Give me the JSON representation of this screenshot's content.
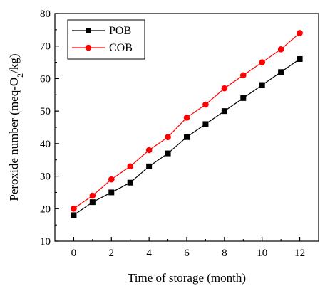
{
  "chart_data": {
    "type": "line",
    "title": "",
    "xlabel": "Time of storage (month)",
    "ylabel_parts": [
      "Peroxide number (meq-O",
      "2",
      "/kg)"
    ],
    "xlim": [
      -1,
      13
    ],
    "ylim": [
      10,
      80
    ],
    "xticks": [
      0,
      2,
      4,
      6,
      8,
      10,
      12
    ],
    "xtick_labels": [
      "0",
      "2",
      "4",
      "6",
      "8",
      "10",
      "12"
    ],
    "yticks": [
      10,
      20,
      30,
      40,
      50,
      60,
      70,
      80
    ],
    "ytick_labels": [
      "10",
      "20",
      "30",
      "40",
      "50",
      "60",
      "70",
      "80"
    ],
    "grid": false,
    "legend_position": "top-left",
    "x": [
      0,
      1,
      2,
      3,
      4,
      5,
      6,
      7,
      8,
      9,
      10,
      11,
      12
    ],
    "series": [
      {
        "name": "POB",
        "color": "#000000",
        "marker": "square",
        "values": [
          18,
          22,
          25,
          28,
          33,
          37,
          42,
          46,
          50,
          54,
          58,
          62,
          66
        ]
      },
      {
        "name": "COB",
        "color": "#ff0000",
        "marker": "circle",
        "values": [
          20,
          24,
          29,
          33,
          38,
          42,
          48,
          52,
          57,
          61,
          65,
          69,
          74
        ]
      }
    ]
  }
}
